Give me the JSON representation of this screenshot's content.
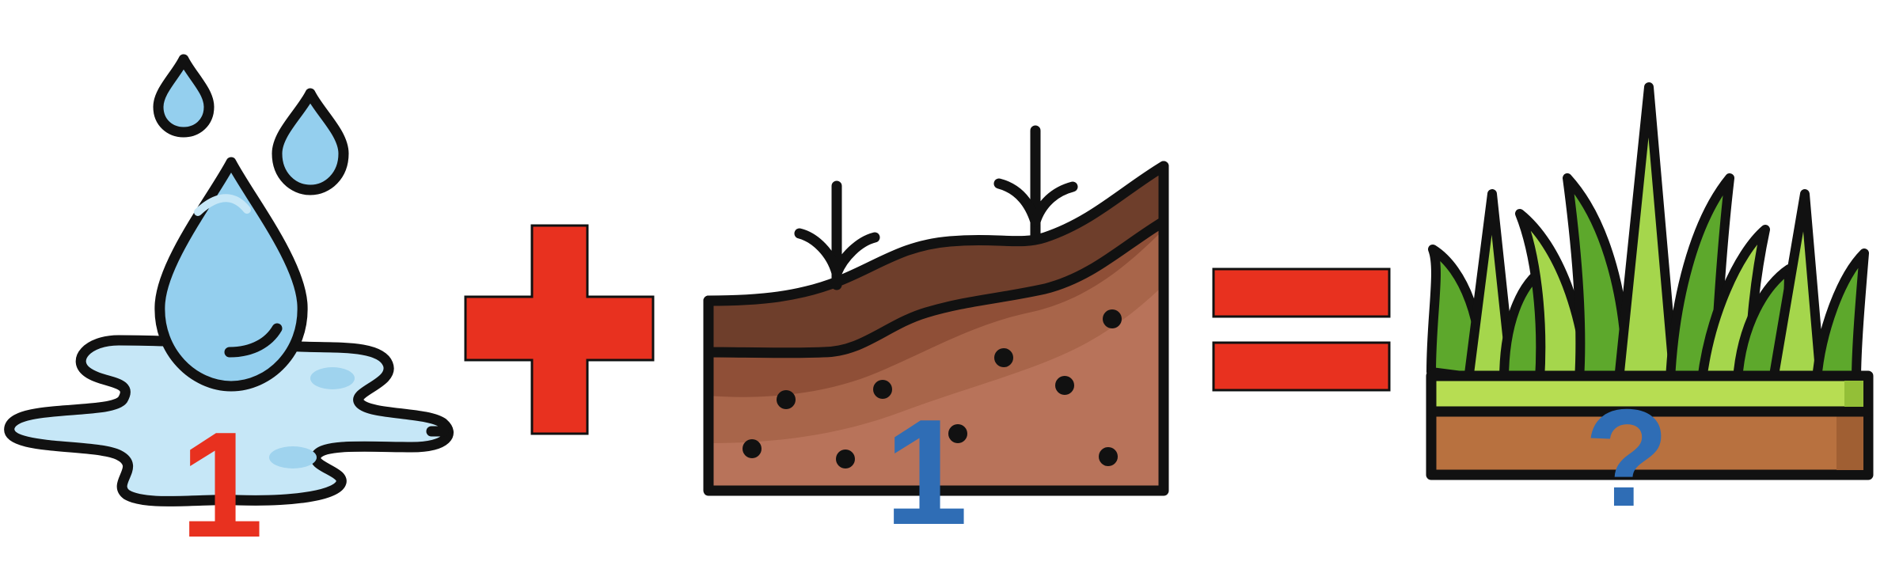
{
  "equation": {
    "water": {
      "icon": "water-puddle-icon",
      "number": "1",
      "number_color": "#e8311f"
    },
    "operator_plus": {
      "icon": "plus-icon",
      "color": "#e8311f"
    },
    "soil": {
      "icon": "soil-cross-section-icon",
      "number": "1",
      "number_color": "#2f6db5"
    },
    "operator_equals": {
      "icon": "equals-icon",
      "color": "#e8311f"
    },
    "grass": {
      "icon": "grass-icon",
      "number": "?",
      "number_color": "#2f6db5"
    }
  },
  "colors": {
    "outline": "#111111",
    "water_light": "#c6e7f7",
    "water_drop": "#94cfee",
    "soil_dark": "#6e3e2b",
    "soil_mid": "#8f4f37",
    "soil_light": "#a8654a",
    "grass_dark": "#5da82c",
    "grass_light": "#a5d64c",
    "turf_strip": "#b7dd52",
    "turf_soil": "#b8713f"
  }
}
